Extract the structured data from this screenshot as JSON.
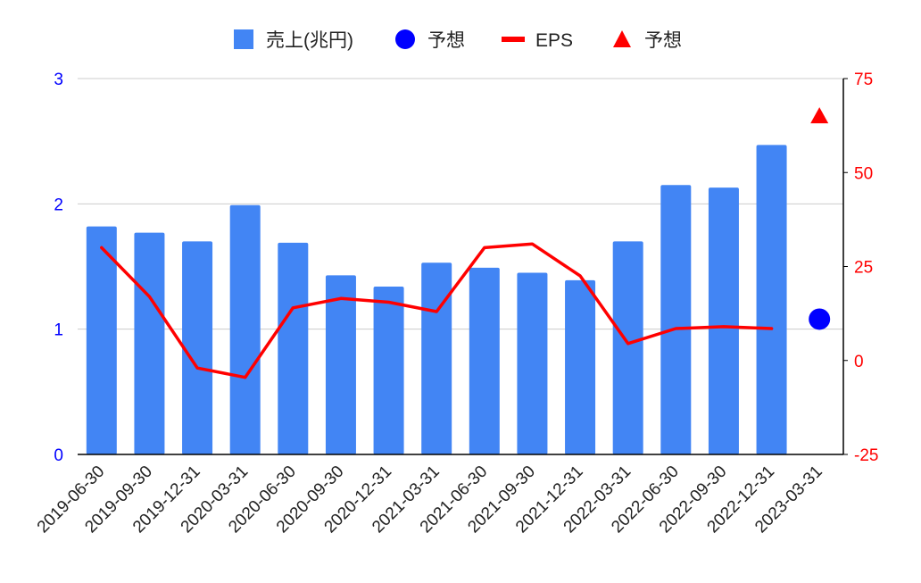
{
  "colors": {
    "bar": "#4285f4",
    "forecast_sales": "#0000ff",
    "eps": "#ff0000",
    "forecast_eps": "#ff0000",
    "left_axis_text": "#0000ff",
    "right_axis_text": "#ff0000",
    "grid": "#cccccc",
    "axis_line": "#000000",
    "text": "#222222"
  },
  "chart_data": {
    "type": "bar",
    "legend_position": "top",
    "grid": true,
    "categories": [
      "2019-06-30",
      "2019-09-30",
      "2019-12-31",
      "2020-03-31",
      "2020-06-30",
      "2020-09-30",
      "2020-12-31",
      "2021-03-31",
      "2021-06-30",
      "2021-09-30",
      "2021-12-31",
      "2022-03-31",
      "2022-06-30",
      "2022-09-30",
      "2022-12-31",
      "2023-03-31"
    ],
    "y_left": {
      "ylim": [
        0,
        3
      ],
      "ticks": [
        "0",
        "1",
        "2",
        "3"
      ]
    },
    "y_right": {
      "ylim": [
        -25,
        75
      ],
      "ticks": [
        "-25",
        "0",
        "25",
        "50",
        "75"
      ]
    },
    "series": [
      {
        "name": "売上(兆円)",
        "kind": "bar",
        "axis": "left",
        "icon": "square",
        "values": [
          1.82,
          1.77,
          1.7,
          1.99,
          1.69,
          1.43,
          1.34,
          1.53,
          1.49,
          1.45,
          1.39,
          1.7,
          2.15,
          2.13,
          2.47,
          null
        ]
      },
      {
        "name": "予想",
        "kind": "point",
        "axis": "left",
        "icon": "circle",
        "values": [
          null,
          null,
          null,
          null,
          null,
          null,
          null,
          null,
          null,
          null,
          null,
          null,
          null,
          null,
          null,
          1.08
        ]
      },
      {
        "name": "EPS",
        "kind": "line",
        "axis": "right",
        "icon": "line",
        "values": [
          30,
          17,
          -2,
          -4.5,
          14,
          16.5,
          15.5,
          13,
          30,
          31,
          22.5,
          4.5,
          8.5,
          9,
          8.5,
          null
        ]
      },
      {
        "name": "予想",
        "kind": "point",
        "axis": "right",
        "icon": "triangle",
        "values": [
          null,
          null,
          null,
          null,
          null,
          null,
          null,
          null,
          null,
          null,
          null,
          null,
          null,
          null,
          null,
          65
        ]
      }
    ]
  }
}
